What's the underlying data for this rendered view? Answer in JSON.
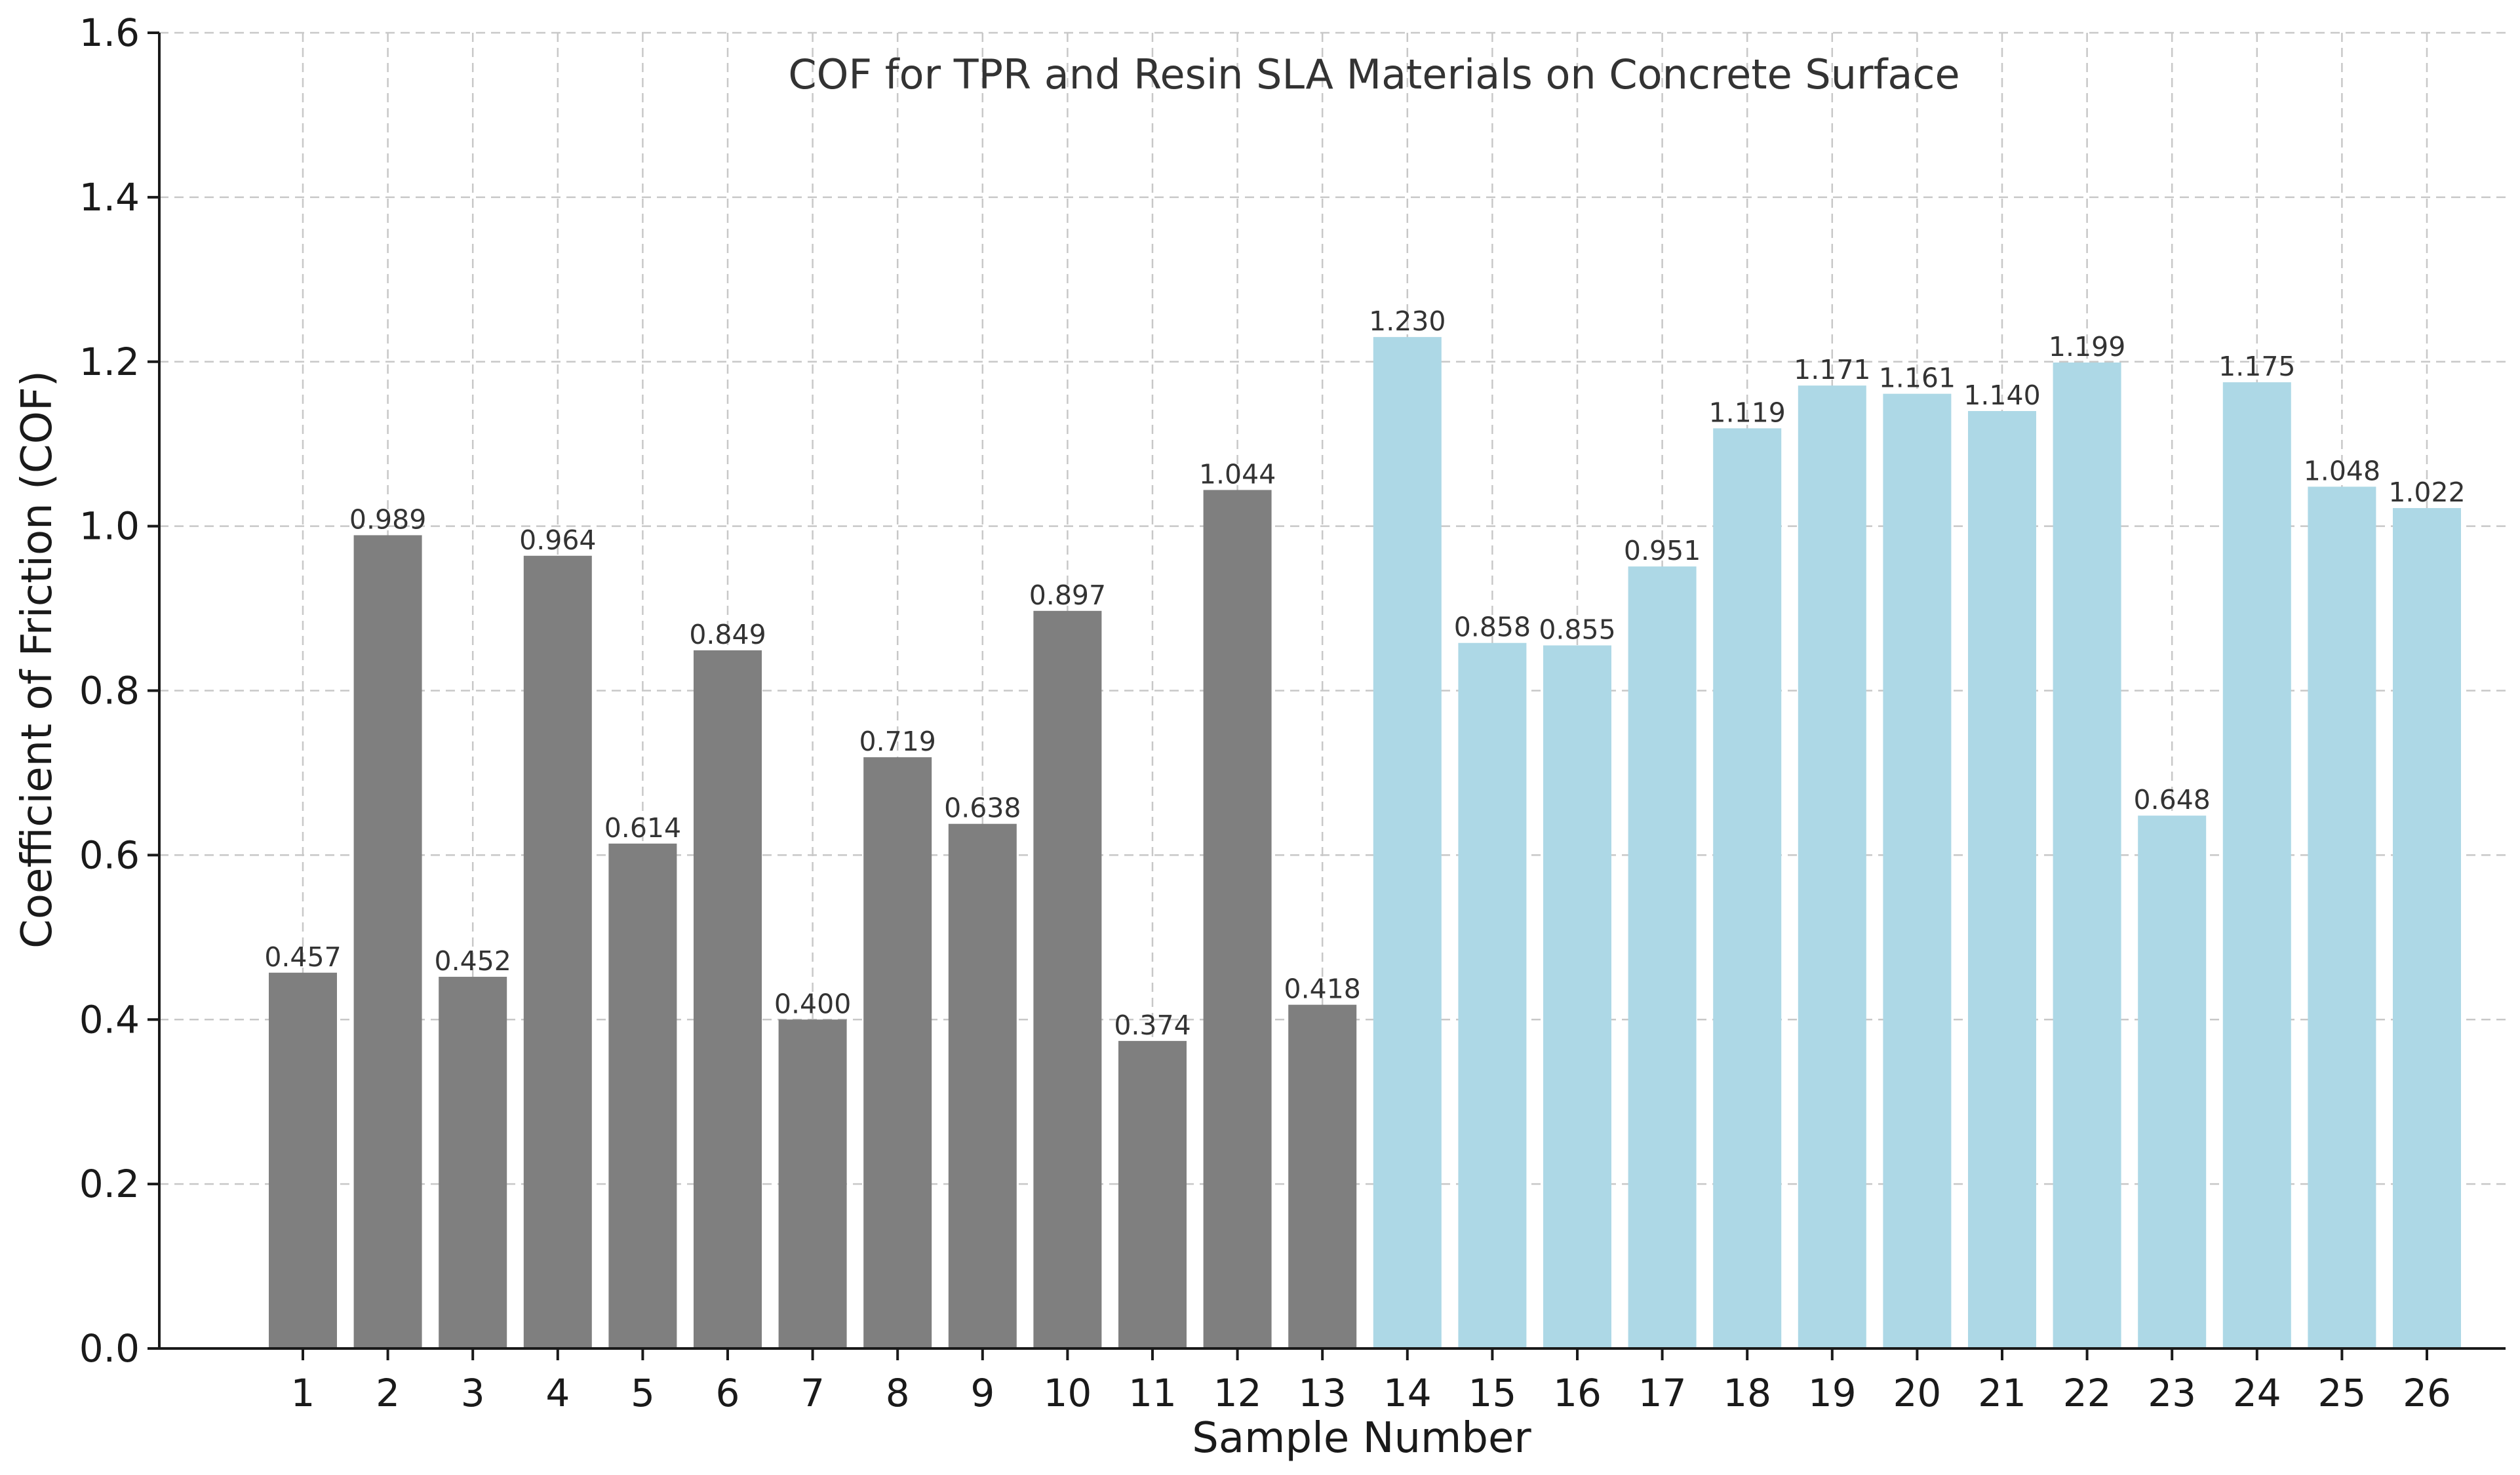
{
  "chart_data": {
    "type": "bar",
    "title": "COF for TPR and Resin SLA Materials on Concrete Surface",
    "xlabel": "Sample Number",
    "ylabel": "Coefficient of Friction (COF)",
    "ylim": [
      0,
      1.6
    ],
    "yticks": [
      "0.0",
      "0.2",
      "0.4",
      "0.6",
      "0.8",
      "1.0",
      "1.2",
      "1.4",
      "1.6"
    ],
    "grid": true,
    "categories": [
      "1",
      "2",
      "3",
      "4",
      "5",
      "6",
      "7",
      "8",
      "9",
      "10",
      "11",
      "12",
      "13",
      "14",
      "15",
      "16",
      "17",
      "18",
      "19",
      "20",
      "21",
      "22",
      "23",
      "24",
      "25",
      "26"
    ],
    "values": [
      0.457,
      0.989,
      0.452,
      0.964,
      0.614,
      0.849,
      0.4,
      0.719,
      0.638,
      0.897,
      0.374,
      1.044,
      0.418,
      1.23,
      0.858,
      0.855,
      0.951,
      1.119,
      1.171,
      1.161,
      1.14,
      1.199,
      0.648,
      1.175,
      1.048,
      1.022
    ],
    "data_labels": [
      "0.457",
      "0.989",
      "0.452",
      "0.964",
      "0.614",
      "0.849",
      "0.400",
      "0.719",
      "0.638",
      "0.897",
      "0.374",
      "1.044",
      "0.418",
      "1.230",
      "0.858",
      "0.855",
      "0.951",
      "1.119",
      "1.171",
      "1.161",
      "1.140",
      "1.199",
      "0.648",
      "1.175",
      "1.048",
      "1.022"
    ],
    "bar_colors": [
      "#7f7f7f",
      "#7f7f7f",
      "#7f7f7f",
      "#7f7f7f",
      "#7f7f7f",
      "#7f7f7f",
      "#7f7f7f",
      "#7f7f7f",
      "#7f7f7f",
      "#7f7f7f",
      "#7f7f7f",
      "#7f7f7f",
      "#7f7f7f",
      "#add8e6",
      "#add8e6",
      "#add8e6",
      "#add8e6",
      "#add8e6",
      "#add8e6",
      "#add8e6",
      "#add8e6",
      "#add8e6",
      "#add8e6",
      "#add8e6",
      "#add8e6",
      "#add8e6"
    ]
  }
}
